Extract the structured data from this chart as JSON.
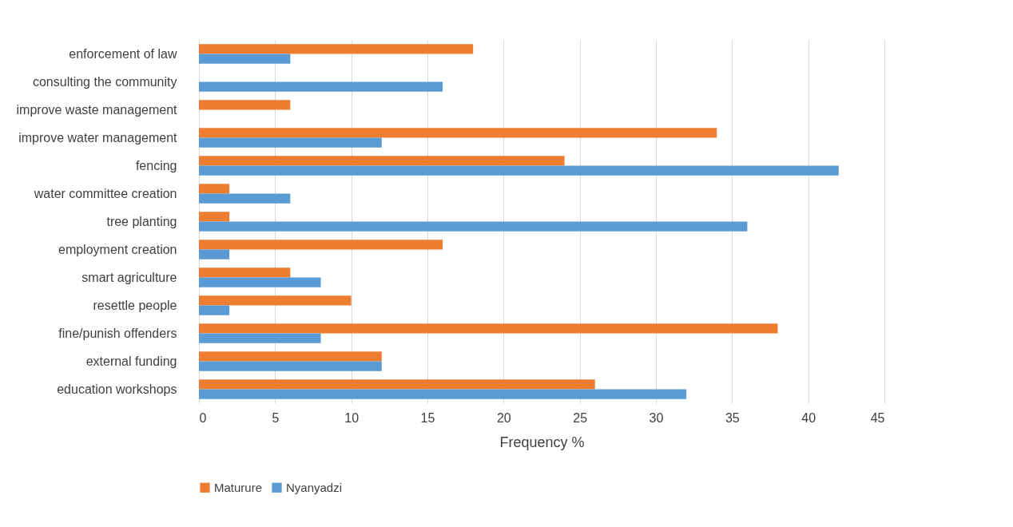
{
  "chart_data": {
    "type": "bar",
    "orientation": "horizontal",
    "xlabel": "Frequency %",
    "categories": [
      "enforcement of law",
      "consulting the community",
      "improve waste management",
      "improve water management",
      "fencing",
      "water committee creation",
      "tree planting",
      "employment creation",
      "smart agriculture",
      "resettle people",
      "fine/punish offenders",
      "external funding",
      "education workshops"
    ],
    "series": [
      {
        "name": "Maturure",
        "color": "#ed7d31",
        "values": [
          18,
          0,
          6,
          34,
          24,
          2,
          2,
          16,
          6,
          10,
          38,
          12,
          26
        ]
      },
      {
        "name": "Nyanyadzi",
        "color": "#5b9bd5",
        "values": [
          6,
          16,
          0,
          12,
          42,
          6,
          36,
          2,
          8,
          2,
          8,
          12,
          32
        ]
      }
    ],
    "xlim": [
      0,
      45
    ],
    "xticks": [
      0,
      5,
      10,
      15,
      20,
      25,
      30,
      35,
      40,
      45
    ],
    "grid": "x",
    "legend": "bottom"
  }
}
